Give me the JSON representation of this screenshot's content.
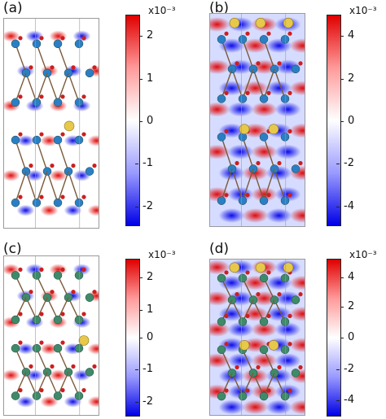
{
  "panels": [
    {
      "label": "(a)",
      "colorbar": {
        "exponent": "x10⁻³",
        "ticks": [
          "2",
          "1",
          "0",
          "-1",
          "-2"
        ]
      }
    },
    {
      "label": "(b)",
      "colorbar": {
        "exponent": "x10⁻³",
        "ticks": [
          "4",
          "2",
          "0",
          "-2",
          "-4"
        ]
      }
    },
    {
      "label": "(c)",
      "colorbar": {
        "exponent": "x10⁻³",
        "ticks": [
          "2",
          "1",
          "0",
          "-1",
          "-2"
        ]
      }
    },
    {
      "label": "(d)",
      "colorbar": {
        "exponent": "x10⁻³",
        "ticks": [
          "4",
          "2",
          "0",
          "-2",
          "-4"
        ]
      }
    }
  ],
  "colors": {
    "positive": "#e00000",
    "negative": "#0000e6",
    "atom_blue": "#2a7fc4",
    "atom_green": "#3f8a68",
    "atom_red": "#cc1f1f",
    "atom_gold": "#e7c84a",
    "bond": "#7a5a3a"
  }
}
